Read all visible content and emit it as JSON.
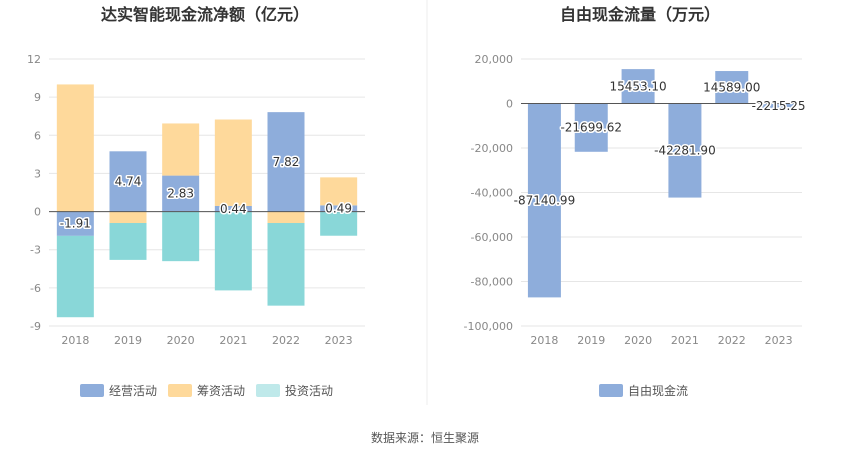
{
  "source": "数据来源：恒生聚源",
  "chart_data": [
    {
      "type": "bar",
      "stacked": true,
      "title": "达实智能现金流净额（亿元）",
      "categories": [
        "2018",
        "2019",
        "2020",
        "2021",
        "2022",
        "2023"
      ],
      "ylim": [
        -9,
        12
      ],
      "yticks": [
        12,
        9,
        6,
        3,
        0,
        -3,
        -6,
        -9
      ],
      "series": [
        {
          "name": "经营活动",
          "color": "#8eaddb",
          "values": [
            -1.91,
            4.74,
            2.83,
            0.44,
            7.82,
            0.49
          ],
          "labels": [
            "-1.91",
            "4.74",
            "2.83",
            "0.44",
            "7.82",
            "0.49"
          ]
        },
        {
          "name": "筹资活动",
          "color": "#fed99b",
          "values": [
            10.0,
            -0.9,
            4.1,
            6.8,
            -0.9,
            2.2
          ]
        },
        {
          "name": "投资活动",
          "color": "#89d7d8",
          "legend_color": "#bfe9ea",
          "values": [
            -6.4,
            -2.9,
            -3.9,
            -6.2,
            -6.5,
            -1.9
          ]
        }
      ]
    },
    {
      "type": "bar",
      "title": "自由现金流量（万元）",
      "categories": [
        "2018",
        "2019",
        "2020",
        "2021",
        "2022",
        "2023"
      ],
      "ylim": [
        -100000,
        20000
      ],
      "yticks": [
        "20,000",
        "0",
        "-20,000",
        "-40,000",
        "-60,000",
        "-80,000",
        "-100,000"
      ],
      "series": [
        {
          "name": "自由现金流",
          "color": "#8eaddb",
          "values": [
            -87140.99,
            -21699.62,
            15453.1,
            -42281.9,
            14589.0,
            -2215.25
          ],
          "labels": [
            "-87140.99",
            "-21699.62",
            "15453.10",
            "-42281.90",
            "14589.00",
            "-2215.25"
          ]
        }
      ]
    }
  ]
}
